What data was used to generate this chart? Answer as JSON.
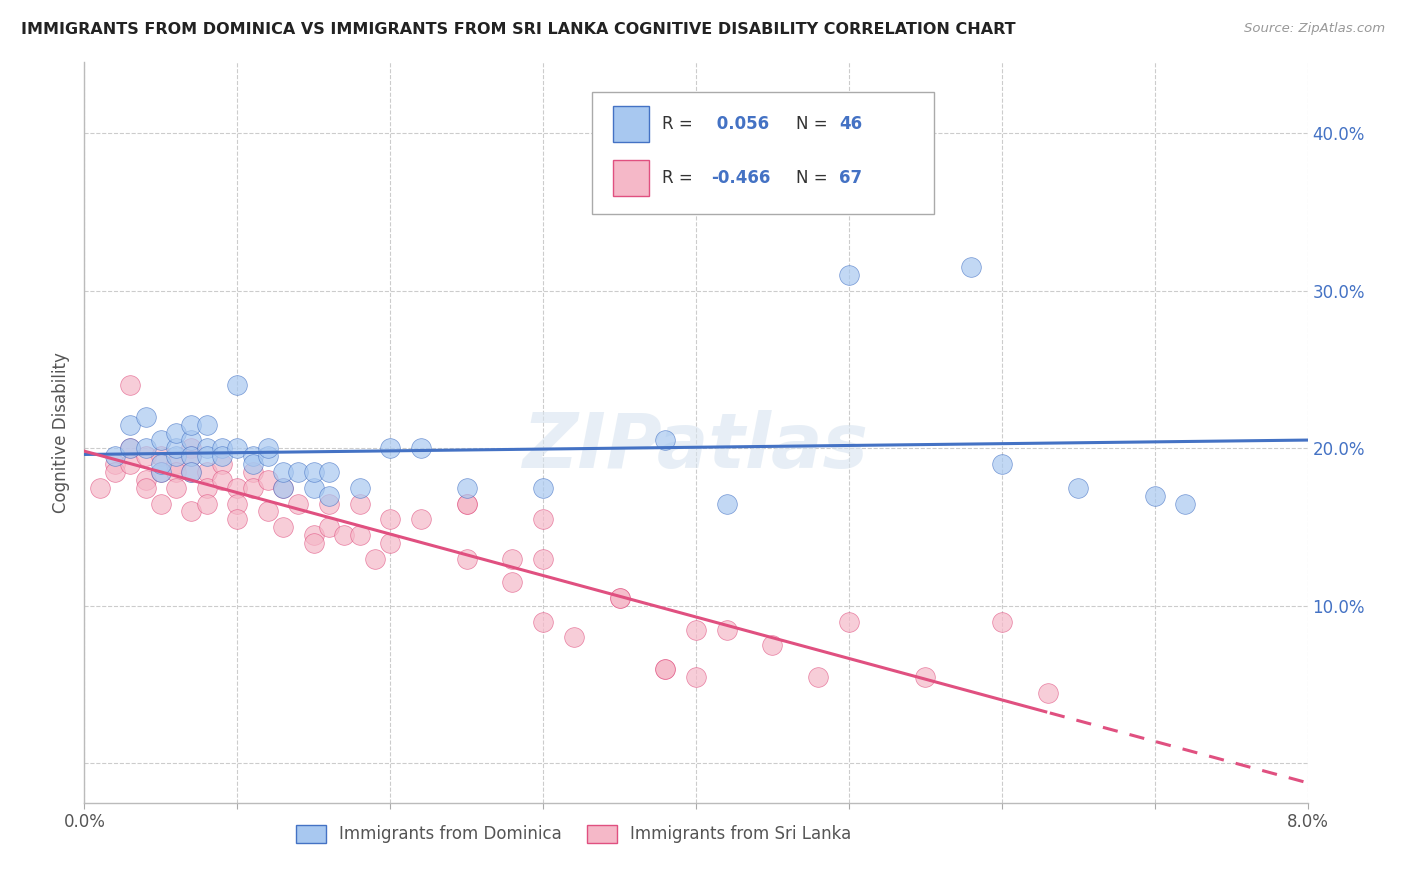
{
  "title": "IMMIGRANTS FROM DOMINICA VS IMMIGRANTS FROM SRI LANKA COGNITIVE DISABILITY CORRELATION CHART",
  "source": "Source: ZipAtlas.com",
  "ylabel": "Cognitive Disability",
  "yticks": [
    0.0,
    0.1,
    0.2,
    0.3,
    0.4
  ],
  "ytick_labels": [
    "",
    "10.0%",
    "20.0%",
    "30.0%",
    "40.0%"
  ],
  "xlim": [
    0.0,
    0.08
  ],
  "ylim": [
    -0.025,
    0.445
  ],
  "legend_label1": "Immigrants from Dominica",
  "legend_label2": "Immigrants from Sri Lanka",
  "R1": 0.056,
  "N1": 46,
  "R2": -0.466,
  "N2": 67,
  "color1": "#a8c8f0",
  "color2": "#f5b8c8",
  "line_color1": "#4472c4",
  "line_color2": "#e05080",
  "watermark": "ZIPatlas",
  "dominica_x": [
    0.002,
    0.003,
    0.003,
    0.004,
    0.004,
    0.005,
    0.005,
    0.005,
    0.006,
    0.006,
    0.006,
    0.007,
    0.007,
    0.007,
    0.007,
    0.008,
    0.008,
    0.008,
    0.009,
    0.009,
    0.01,
    0.01,
    0.011,
    0.011,
    0.012,
    0.012,
    0.013,
    0.013,
    0.014,
    0.015,
    0.015,
    0.016,
    0.016,
    0.018,
    0.02,
    0.022,
    0.025,
    0.03,
    0.038,
    0.042,
    0.05,
    0.058,
    0.06,
    0.065,
    0.07,
    0.072
  ],
  "dominica_y": [
    0.195,
    0.2,
    0.215,
    0.22,
    0.2,
    0.185,
    0.205,
    0.19,
    0.195,
    0.2,
    0.21,
    0.205,
    0.215,
    0.195,
    0.185,
    0.2,
    0.215,
    0.195,
    0.2,
    0.195,
    0.24,
    0.2,
    0.195,
    0.19,
    0.195,
    0.2,
    0.175,
    0.185,
    0.185,
    0.175,
    0.185,
    0.17,
    0.185,
    0.175,
    0.2,
    0.2,
    0.175,
    0.175,
    0.205,
    0.165,
    0.31,
    0.315,
    0.19,
    0.175,
    0.17,
    0.165
  ],
  "srilanka_x": [
    0.001,
    0.002,
    0.002,
    0.003,
    0.003,
    0.003,
    0.004,
    0.004,
    0.004,
    0.005,
    0.005,
    0.005,
    0.006,
    0.006,
    0.006,
    0.007,
    0.007,
    0.007,
    0.007,
    0.008,
    0.008,
    0.008,
    0.009,
    0.009,
    0.01,
    0.01,
    0.01,
    0.011,
    0.011,
    0.012,
    0.012,
    0.013,
    0.013,
    0.014,
    0.015,
    0.015,
    0.016,
    0.016,
    0.017,
    0.018,
    0.018,
    0.019,
    0.02,
    0.02,
    0.022,
    0.025,
    0.025,
    0.028,
    0.03,
    0.035,
    0.038,
    0.04,
    0.042,
    0.045,
    0.048,
    0.05,
    0.055,
    0.06,
    0.063,
    0.03,
    0.032,
    0.038,
    0.04,
    0.025,
    0.028,
    0.03,
    0.035
  ],
  "srilanka_y": [
    0.175,
    0.19,
    0.185,
    0.2,
    0.19,
    0.24,
    0.18,
    0.195,
    0.175,
    0.195,
    0.185,
    0.165,
    0.19,
    0.185,
    0.175,
    0.2,
    0.195,
    0.185,
    0.16,
    0.185,
    0.175,
    0.165,
    0.19,
    0.18,
    0.175,
    0.165,
    0.155,
    0.185,
    0.175,
    0.18,
    0.16,
    0.175,
    0.15,
    0.165,
    0.145,
    0.14,
    0.165,
    0.15,
    0.145,
    0.165,
    0.145,
    0.13,
    0.14,
    0.155,
    0.155,
    0.165,
    0.13,
    0.115,
    0.09,
    0.105,
    0.06,
    0.055,
    0.085,
    0.075,
    0.055,
    0.09,
    0.055,
    0.09,
    0.045,
    0.155,
    0.08,
    0.06,
    0.085,
    0.165,
    0.13,
    0.13,
    0.105
  ]
}
